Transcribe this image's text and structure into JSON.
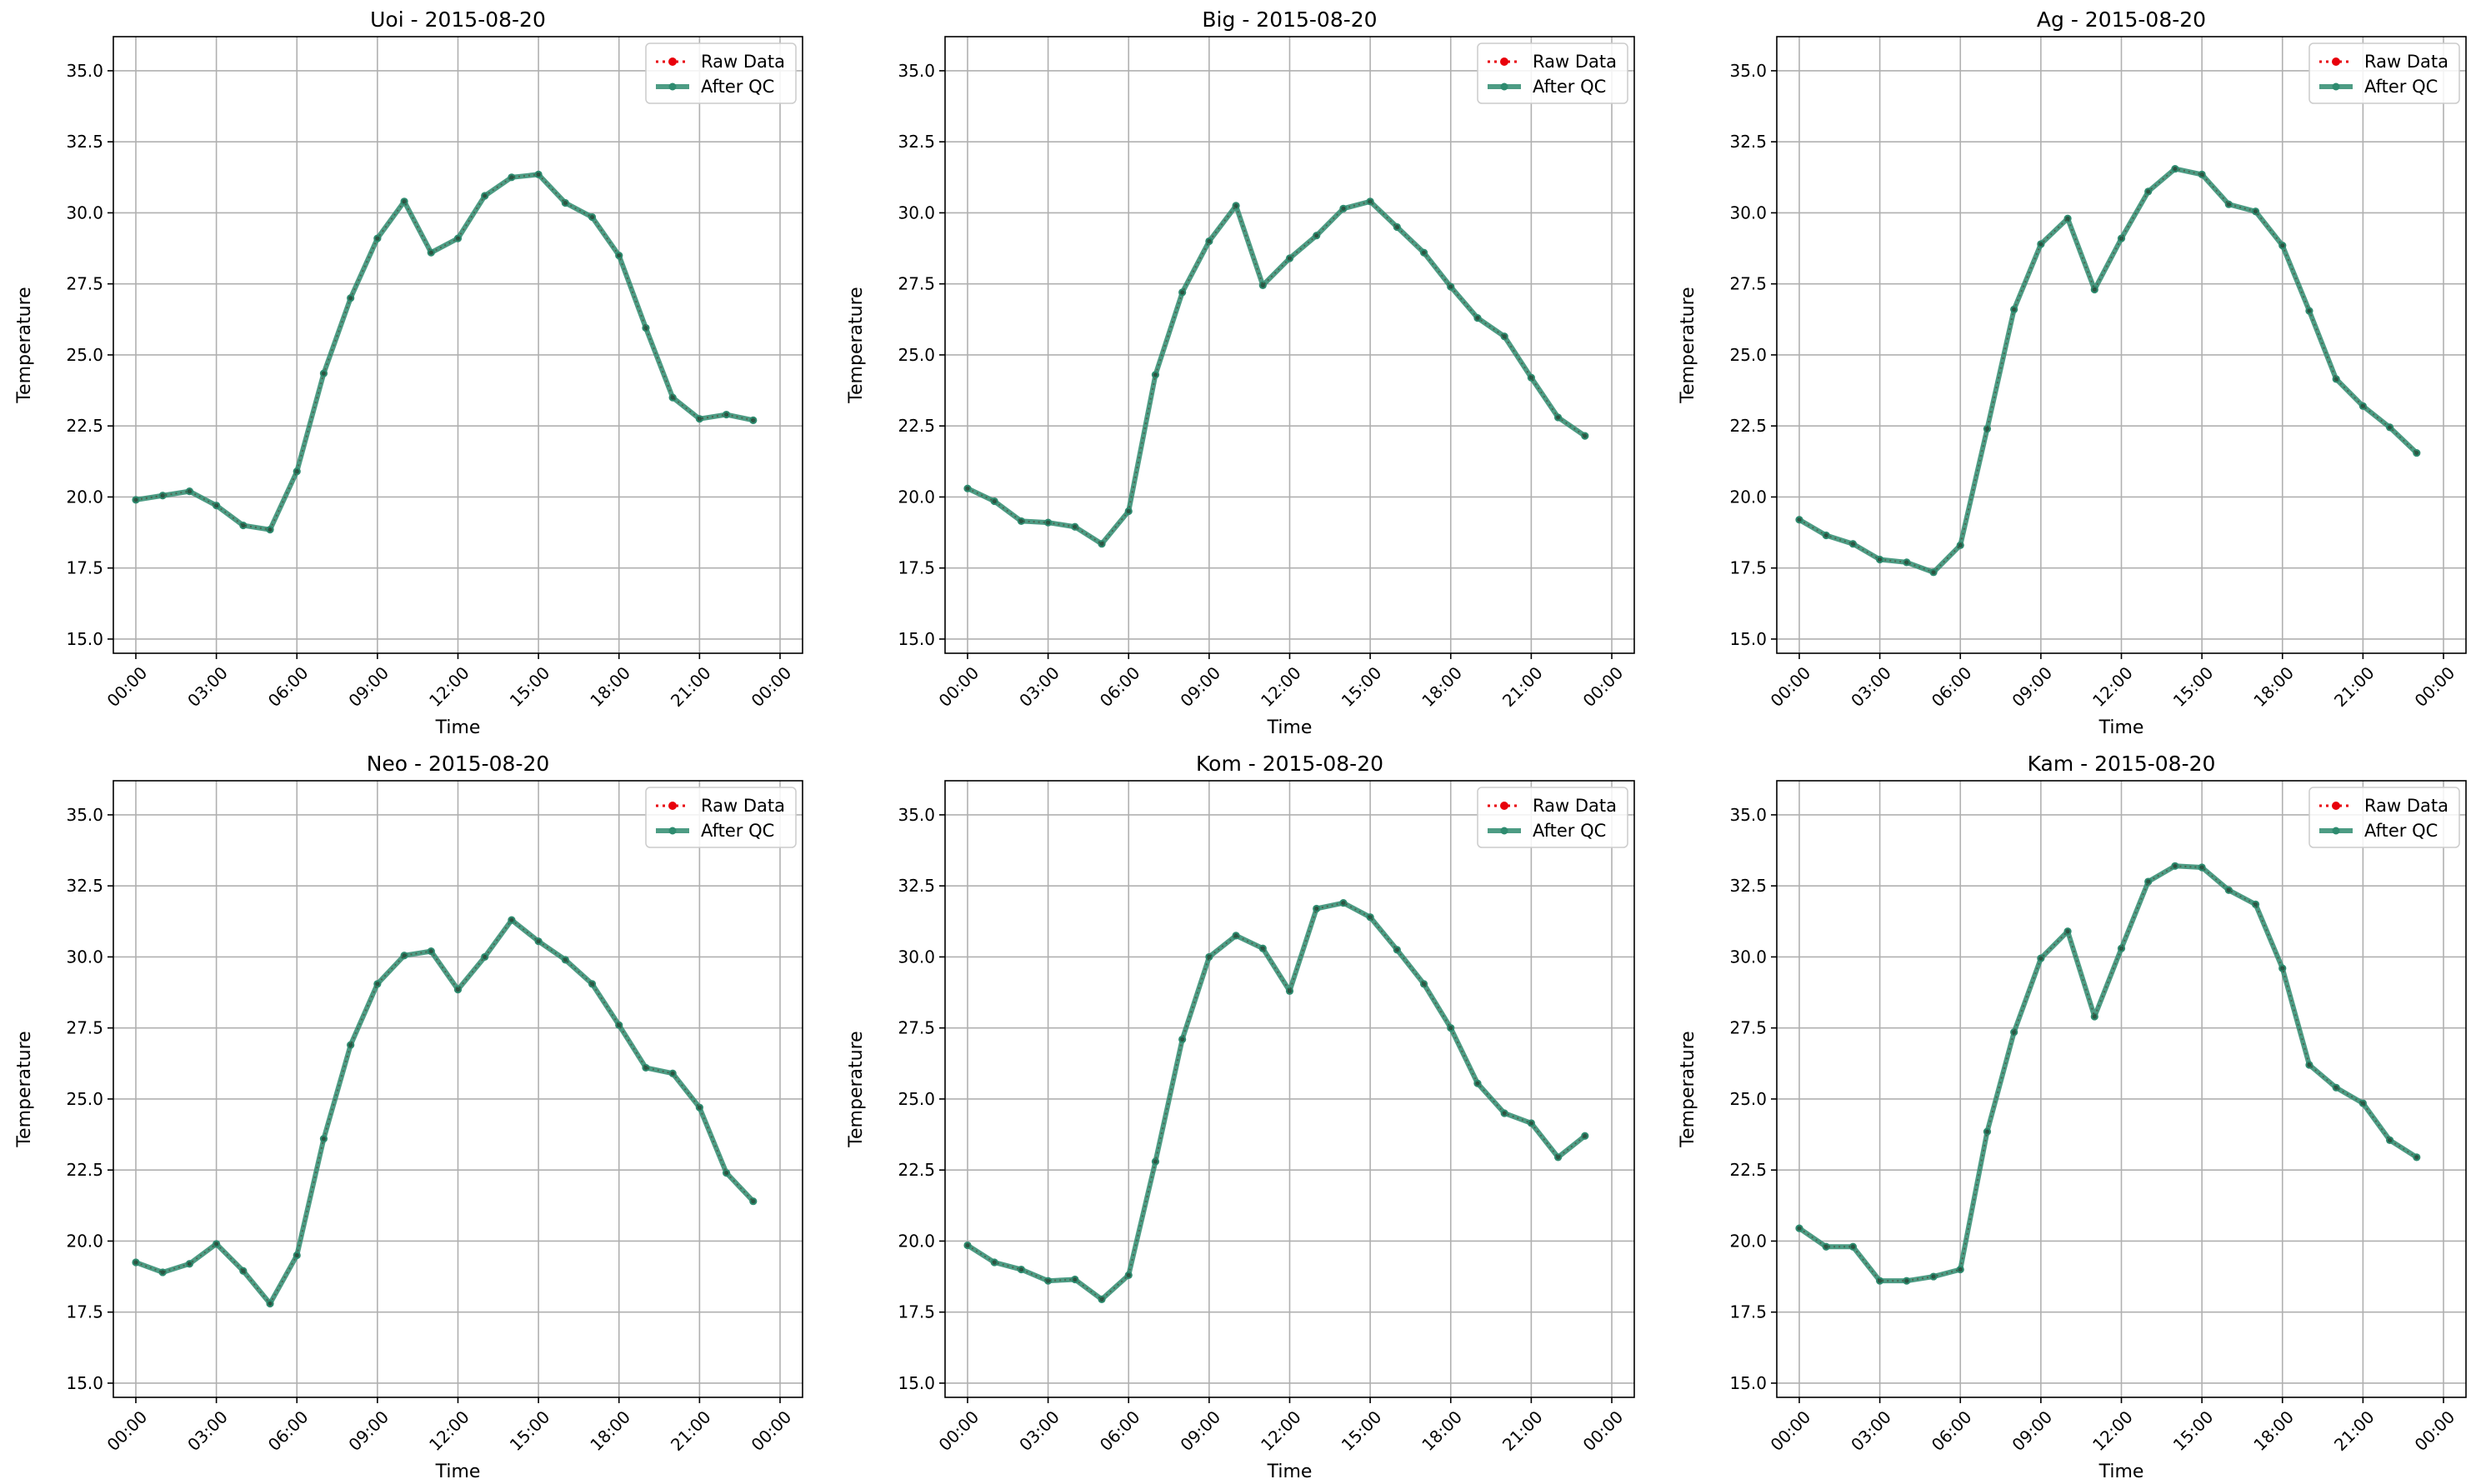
{
  "figure": {
    "colors": {
      "raw": "#e8000b",
      "after_qc": "#2e8b6f",
      "grid": "#b0b0b0",
      "axes": "#000000",
      "legend_border": "#cccccc",
      "background": "#ffffff"
    }
  },
  "chart_data": [
    {
      "type": "line",
      "title": "Uoi - 2015-08-20",
      "xlabel": "Time",
      "ylabel": "Temperature",
      "ylim": [
        14.5,
        36.2
      ],
      "yticks": [
        "15.0",
        "17.5",
        "20.0",
        "22.5",
        "25.0",
        "27.5",
        "30.0",
        "32.5",
        "35.0"
      ],
      "xticks": [
        "00:00",
        "03:00",
        "06:00",
        "09:00",
        "12:00",
        "15:00",
        "18:00",
        "21:00",
        "00:00"
      ],
      "grid": true,
      "legend_position": "top-right",
      "x": [
        "00:00",
        "01:00",
        "02:00",
        "03:00",
        "04:00",
        "05:00",
        "06:00",
        "07:00",
        "08:00",
        "09:00",
        "10:00",
        "11:00",
        "12:00",
        "13:00",
        "14:00",
        "15:00",
        "16:00",
        "17:00",
        "18:00",
        "19:00",
        "20:00",
        "21:00",
        "22:00",
        "23:00"
      ],
      "series": [
        {
          "name": "Raw Data",
          "values": [
            19.9,
            20.05,
            20.2,
            19.7,
            19.0,
            18.85,
            20.9,
            24.35,
            27.0,
            29.1,
            30.4,
            28.6,
            29.1,
            30.6,
            31.25,
            31.35,
            30.35,
            29.85,
            28.5,
            25.95,
            23.5,
            22.75,
            22.9,
            22.7
          ]
        },
        {
          "name": "After QC",
          "values": [
            19.9,
            20.05,
            20.2,
            19.7,
            19.0,
            18.85,
            20.9,
            24.35,
            27.0,
            29.1,
            30.4,
            28.6,
            29.1,
            30.6,
            31.25,
            31.35,
            30.35,
            29.85,
            28.5,
            25.95,
            23.5,
            22.75,
            22.9,
            22.7
          ]
        }
      ]
    },
    {
      "type": "line",
      "title": "Big - 2015-08-20",
      "xlabel": "Time",
      "ylabel": "Temperature",
      "ylim": [
        14.5,
        36.2
      ],
      "yticks": [
        "15.0",
        "17.5",
        "20.0",
        "22.5",
        "25.0",
        "27.5",
        "30.0",
        "32.5",
        "35.0"
      ],
      "xticks": [
        "00:00",
        "03:00",
        "06:00",
        "09:00",
        "12:00",
        "15:00",
        "18:00",
        "21:00",
        "00:00"
      ],
      "grid": true,
      "legend_position": "top-right",
      "x": [
        "00:00",
        "01:00",
        "02:00",
        "03:00",
        "04:00",
        "05:00",
        "06:00",
        "07:00",
        "08:00",
        "09:00",
        "10:00",
        "11:00",
        "12:00",
        "13:00",
        "14:00",
        "15:00",
        "16:00",
        "17:00",
        "18:00",
        "19:00",
        "20:00",
        "21:00",
        "22:00",
        "23:00"
      ],
      "series": [
        {
          "name": "Raw Data",
          "values": [
            20.3,
            19.85,
            19.15,
            19.1,
            18.95,
            18.35,
            19.5,
            24.3,
            27.2,
            29.0,
            30.25,
            27.45,
            28.4,
            29.2,
            30.15,
            30.4,
            29.5,
            28.6,
            27.4,
            26.3,
            25.65,
            24.2,
            22.8,
            22.15
          ]
        },
        {
          "name": "After QC",
          "values": [
            20.3,
            19.85,
            19.15,
            19.1,
            18.95,
            18.35,
            19.5,
            24.3,
            27.2,
            29.0,
            30.25,
            27.45,
            28.4,
            29.2,
            30.15,
            30.4,
            29.5,
            28.6,
            27.4,
            26.3,
            25.65,
            24.2,
            22.8,
            22.15
          ]
        }
      ]
    },
    {
      "type": "line",
      "title": "Ag - 2015-08-20",
      "xlabel": "Time",
      "ylabel": "Temperature",
      "ylim": [
        14.5,
        36.2
      ],
      "yticks": [
        "15.0",
        "17.5",
        "20.0",
        "22.5",
        "25.0",
        "27.5",
        "30.0",
        "32.5",
        "35.0"
      ],
      "xticks": [
        "00:00",
        "03:00",
        "06:00",
        "09:00",
        "12:00",
        "15:00",
        "18:00",
        "21:00",
        "00:00"
      ],
      "grid": true,
      "legend_position": "top-right",
      "x": [
        "00:00",
        "01:00",
        "02:00",
        "03:00",
        "04:00",
        "05:00",
        "06:00",
        "07:00",
        "08:00",
        "09:00",
        "10:00",
        "11:00",
        "12:00",
        "13:00",
        "14:00",
        "15:00",
        "16:00",
        "17:00",
        "18:00",
        "19:00",
        "20:00",
        "21:00",
        "22:00",
        "23:00"
      ],
      "series": [
        {
          "name": "Raw Data",
          "values": [
            19.2,
            18.65,
            18.35,
            17.8,
            17.7,
            17.35,
            18.3,
            22.4,
            26.6,
            28.9,
            29.8,
            27.3,
            29.1,
            30.75,
            31.55,
            31.35,
            30.3,
            30.05,
            28.85,
            26.55,
            24.15,
            23.2,
            22.45,
            21.55
          ]
        },
        {
          "name": "After QC",
          "values": [
            19.2,
            18.65,
            18.35,
            17.8,
            17.7,
            17.35,
            18.3,
            22.4,
            26.6,
            28.9,
            29.8,
            27.3,
            29.1,
            30.75,
            31.55,
            31.35,
            30.3,
            30.05,
            28.85,
            26.55,
            24.15,
            23.2,
            22.45,
            21.55
          ]
        }
      ]
    },
    {
      "type": "line",
      "title": "Neo - 2015-08-20",
      "xlabel": "Time",
      "ylabel": "Temperature",
      "ylim": [
        14.5,
        36.2
      ],
      "yticks": [
        "15.0",
        "17.5",
        "20.0",
        "22.5",
        "25.0",
        "27.5",
        "30.0",
        "32.5",
        "35.0"
      ],
      "xticks": [
        "00:00",
        "03:00",
        "06:00",
        "09:00",
        "12:00",
        "15:00",
        "18:00",
        "21:00",
        "00:00"
      ],
      "grid": true,
      "legend_position": "top-right",
      "x": [
        "00:00",
        "01:00",
        "02:00",
        "03:00",
        "04:00",
        "05:00",
        "06:00",
        "07:00",
        "08:00",
        "09:00",
        "10:00",
        "11:00",
        "12:00",
        "13:00",
        "14:00",
        "15:00",
        "16:00",
        "17:00",
        "18:00",
        "19:00",
        "20:00",
        "21:00",
        "22:00",
        "23:00"
      ],
      "series": [
        {
          "name": "Raw Data",
          "values": [
            19.25,
            18.9,
            19.2,
            19.9,
            18.95,
            17.8,
            19.5,
            23.6,
            26.9,
            29.05,
            30.05,
            30.2,
            28.85,
            30.0,
            31.3,
            30.55,
            29.9,
            29.05,
            27.6,
            26.1,
            25.9,
            24.7,
            22.4,
            21.4
          ]
        },
        {
          "name": "After QC",
          "values": [
            19.25,
            18.9,
            19.2,
            19.9,
            18.95,
            17.8,
            19.5,
            23.6,
            26.9,
            29.05,
            30.05,
            30.2,
            28.85,
            30.0,
            31.3,
            30.55,
            29.9,
            29.05,
            27.6,
            26.1,
            25.9,
            24.7,
            22.4,
            21.4
          ]
        }
      ]
    },
    {
      "type": "line",
      "title": "Kom - 2015-08-20",
      "xlabel": "Time",
      "ylabel": "Temperature",
      "ylim": [
        14.5,
        36.2
      ],
      "yticks": [
        "15.0",
        "17.5",
        "20.0",
        "22.5",
        "25.0",
        "27.5",
        "30.0",
        "32.5",
        "35.0"
      ],
      "xticks": [
        "00:00",
        "03:00",
        "06:00",
        "09:00",
        "12:00",
        "15:00",
        "18:00",
        "21:00",
        "00:00"
      ],
      "grid": true,
      "legend_position": "top-right",
      "x": [
        "00:00",
        "01:00",
        "02:00",
        "03:00",
        "04:00",
        "05:00",
        "06:00",
        "07:00",
        "08:00",
        "09:00",
        "10:00",
        "11:00",
        "12:00",
        "13:00",
        "14:00",
        "15:00",
        "16:00",
        "17:00",
        "18:00",
        "19:00",
        "20:00",
        "21:00",
        "22:00",
        "23:00"
      ],
      "series": [
        {
          "name": "Raw Data",
          "values": [
            19.85,
            19.25,
            19.0,
            18.6,
            18.65,
            17.95,
            18.8,
            22.8,
            27.1,
            30.0,
            30.75,
            30.3,
            28.8,
            31.7,
            31.9,
            31.4,
            30.25,
            29.05,
            27.5,
            25.55,
            24.5,
            24.15,
            22.95,
            23.7
          ]
        },
        {
          "name": "After QC",
          "values": [
            19.85,
            19.25,
            19.0,
            18.6,
            18.65,
            17.95,
            18.8,
            22.8,
            27.1,
            30.0,
            30.75,
            30.3,
            28.8,
            31.7,
            31.9,
            31.4,
            30.25,
            29.05,
            27.5,
            25.55,
            24.5,
            24.15,
            22.95,
            23.7
          ]
        }
      ]
    },
    {
      "type": "line",
      "title": "Kam - 2015-08-20",
      "xlabel": "Time",
      "ylabel": "Temperature",
      "ylim": [
        14.5,
        36.2
      ],
      "yticks": [
        "15.0",
        "17.5",
        "20.0",
        "22.5",
        "25.0",
        "27.5",
        "30.0",
        "32.5",
        "35.0"
      ],
      "xticks": [
        "00:00",
        "03:00",
        "06:00",
        "09:00",
        "12:00",
        "15:00",
        "18:00",
        "21:00",
        "00:00"
      ],
      "grid": true,
      "legend_position": "top-right",
      "x": [
        "00:00",
        "01:00",
        "02:00",
        "03:00",
        "04:00",
        "05:00",
        "06:00",
        "07:00",
        "08:00",
        "09:00",
        "10:00",
        "11:00",
        "12:00",
        "13:00",
        "14:00",
        "15:00",
        "16:00",
        "17:00",
        "18:00",
        "19:00",
        "20:00",
        "21:00",
        "22:00",
        "23:00"
      ],
      "series": [
        {
          "name": "Raw Data",
          "values": [
            20.45,
            19.8,
            19.8,
            18.6,
            18.6,
            18.75,
            19.0,
            23.85,
            27.35,
            29.95,
            30.9,
            27.9,
            30.3,
            32.65,
            33.2,
            33.15,
            32.35,
            31.85,
            29.6,
            26.2,
            25.4,
            24.85,
            23.55,
            22.95
          ]
        },
        {
          "name": "After QC",
          "values": [
            20.45,
            19.8,
            19.8,
            18.6,
            18.6,
            18.75,
            19.0,
            23.85,
            27.35,
            29.95,
            30.9,
            27.9,
            30.3,
            32.65,
            33.2,
            33.15,
            32.35,
            31.85,
            29.6,
            26.2,
            25.4,
            24.85,
            23.55,
            22.95
          ]
        }
      ]
    }
  ]
}
